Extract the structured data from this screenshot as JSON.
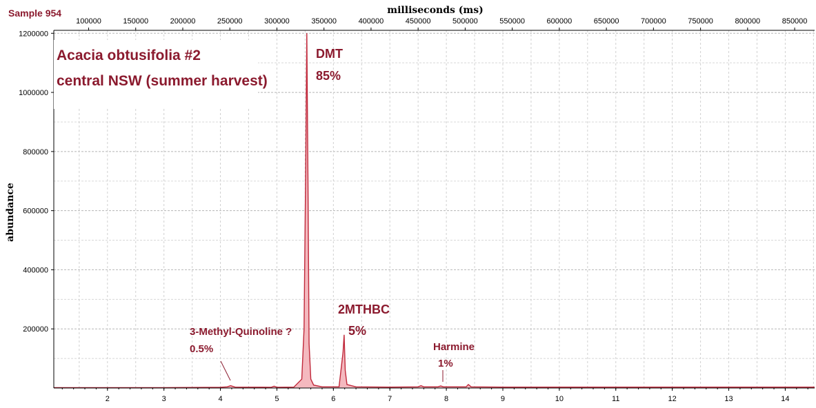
{
  "sample_label": "Sample 954",
  "colors": {
    "trace": "#c0283a",
    "fill": "#f4b9bf",
    "annotation": "#8b1a2e",
    "grid": "#c8c8c8"
  },
  "chart_data": {
    "type": "line",
    "title": "Acacia obtusifolia #2",
    "subtitle": "central NSW (summer harvest)",
    "xlabel": "",
    "ylabel": "abundance",
    "x2label": "milliseconds (ms)",
    "xlim": [
      1.05,
      14.52
    ],
    "ylim": [
      0,
      1210000
    ],
    "x_ticks": [
      "2",
      "3",
      "4",
      "5",
      "6",
      "7",
      "8",
      "9",
      "10",
      "11",
      "12",
      "13",
      "14"
    ],
    "y_ticks": [
      "200000",
      "400000",
      "600000",
      "800000",
      "1000000",
      "1200000"
    ],
    "x2_ticks": [
      "100000",
      "150000",
      "200000",
      "250000",
      "300000",
      "350000",
      "400000",
      "450000",
      "500000",
      "550000",
      "600000",
      "650000",
      "700000",
      "750000",
      "800000",
      "850000"
    ],
    "grid": true,
    "series": [
      {
        "x": [
          1.05,
          3.0,
          4.0,
          4.12,
          4.18,
          4.26,
          4.9,
          4.95,
          5.0,
          5.3,
          5.44,
          5.48,
          5.51,
          5.53,
          5.55,
          5.57,
          5.6,
          5.65,
          5.8,
          6.1,
          6.17,
          6.19,
          6.21,
          6.24,
          6.4,
          7.0,
          7.5,
          7.55,
          7.6,
          7.85,
          7.9,
          7.95,
          8.35,
          8.39,
          8.44,
          9.0,
          11.0,
          14.52
        ],
        "y": [
          1500,
          1500,
          2500,
          4000,
          8000,
          3000,
          2500,
          6000,
          2500,
          3000,
          30000,
          200000,
          750000,
          1200000,
          700000,
          150000,
          30000,
          10000,
          4000,
          4000,
          120000,
          180000,
          60000,
          12000,
          4000,
          3000,
          4000,
          8000,
          4000,
          4000,
          7000,
          4000,
          4000,
          12000,
          4000,
          3000,
          3000,
          3000
        ]
      }
    ],
    "annotations": [
      {
        "line1": "DMT",
        "line2": "85%"
      },
      {
        "line1": "2MTHBC",
        "line2": "5%"
      },
      {
        "line1": "3-Methyl-Quinoline ?",
        "line2": "0.5%"
      },
      {
        "line1": "Harmine",
        "line2": "1%"
      }
    ]
  }
}
